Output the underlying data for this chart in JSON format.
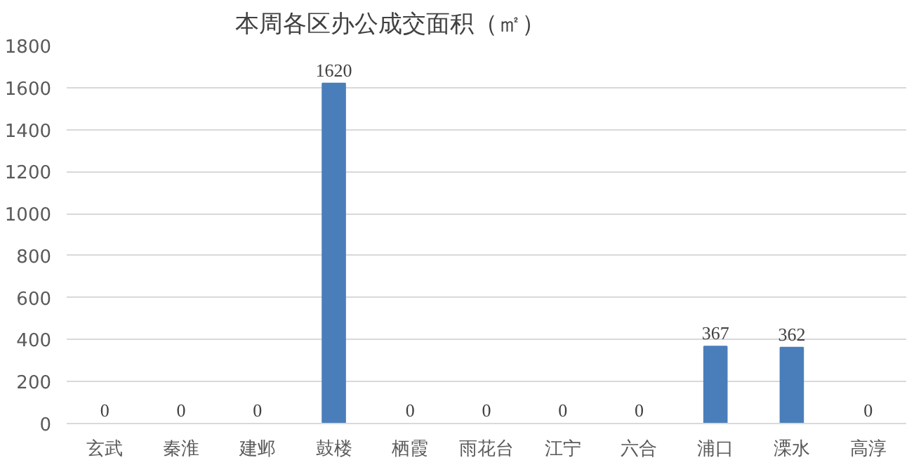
{
  "chart_data": {
    "type": "bar",
    "title": "本周各区办公成交面积（㎡）",
    "categories": [
      "玄武",
      "秦淮",
      "建邺",
      "鼓楼",
      "栖霞",
      "雨花台",
      "江宁",
      "六合",
      "浦口",
      "溧水",
      "高淳"
    ],
    "values": [
      0,
      0,
      0,
      1620,
      0,
      0,
      0,
      0,
      367,
      362,
      0
    ],
    "color": "#4a7ebb",
    "ylim": [
      0,
      1800
    ],
    "yticks": [
      0,
      200,
      400,
      600,
      800,
      1000,
      1200,
      1400,
      1600,
      1800
    ],
    "grid": "y",
    "data_labels": true
  }
}
